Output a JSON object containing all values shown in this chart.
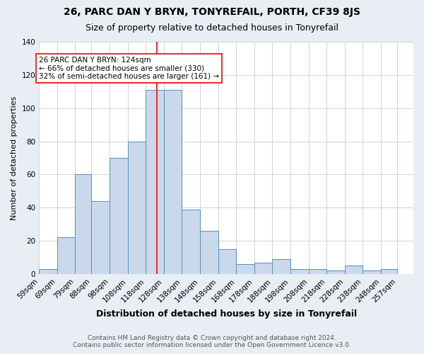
{
  "title": "26, PARC DAN Y BRYN, TONYREFAIL, PORTH, CF39 8JS",
  "subtitle": "Size of property relative to detached houses in Tonyrefail",
  "xlabel": "Distribution of detached houses by size in Tonyrefail",
  "ylabel": "Number of detached properties",
  "footer_line1": "Contains HM Land Registry data © Crown copyright and database right 2024.",
  "footer_line2": "Contains public sector information licensed under the Open Government Licence v3.0.",
  "bar_labels": [
    "59sqm",
    "69sqm",
    "79sqm",
    "88sqm",
    "98sqm",
    "108sqm",
    "118sqm",
    "128sqm",
    "138sqm",
    "148sqm",
    "158sqm",
    "168sqm",
    "178sqm",
    "188sqm",
    "198sqm",
    "208sqm",
    "218sqm",
    "228sqm",
    "238sqm",
    "248sqm",
    "257sqm"
  ],
  "bar_values": [
    3,
    22,
    60,
    44,
    70,
    80,
    111,
    111,
    39,
    26,
    15,
    6,
    7,
    9,
    3,
    3,
    2,
    5,
    2,
    3,
    0
  ],
  "bar_color": "#c9d9eb",
  "bar_edge_color": "#5b8db8",
  "annotation_text": "26 PARC DAN Y BRYN: 124sqm\n← 66% of detached houses are smaller (330)\n32% of semi-detached houses are larger (161) →",
  "red_line_x": 124,
  "annotation_box_color": "white",
  "annotation_box_edge": "red",
  "red_line_color": "red",
  "background_color": "#e8eef4",
  "plot_background": "white",
  "title_fontsize": 10,
  "subtitle_fontsize": 9,
  "xlabel_fontsize": 9,
  "ylabel_fontsize": 8,
  "tick_fontsize": 7.5,
  "annotation_fontsize": 7.5,
  "footer_fontsize": 6.5,
  "ylim": [
    0,
    140
  ],
  "yticks": [
    0,
    20,
    40,
    60,
    80,
    100,
    120,
    140
  ]
}
